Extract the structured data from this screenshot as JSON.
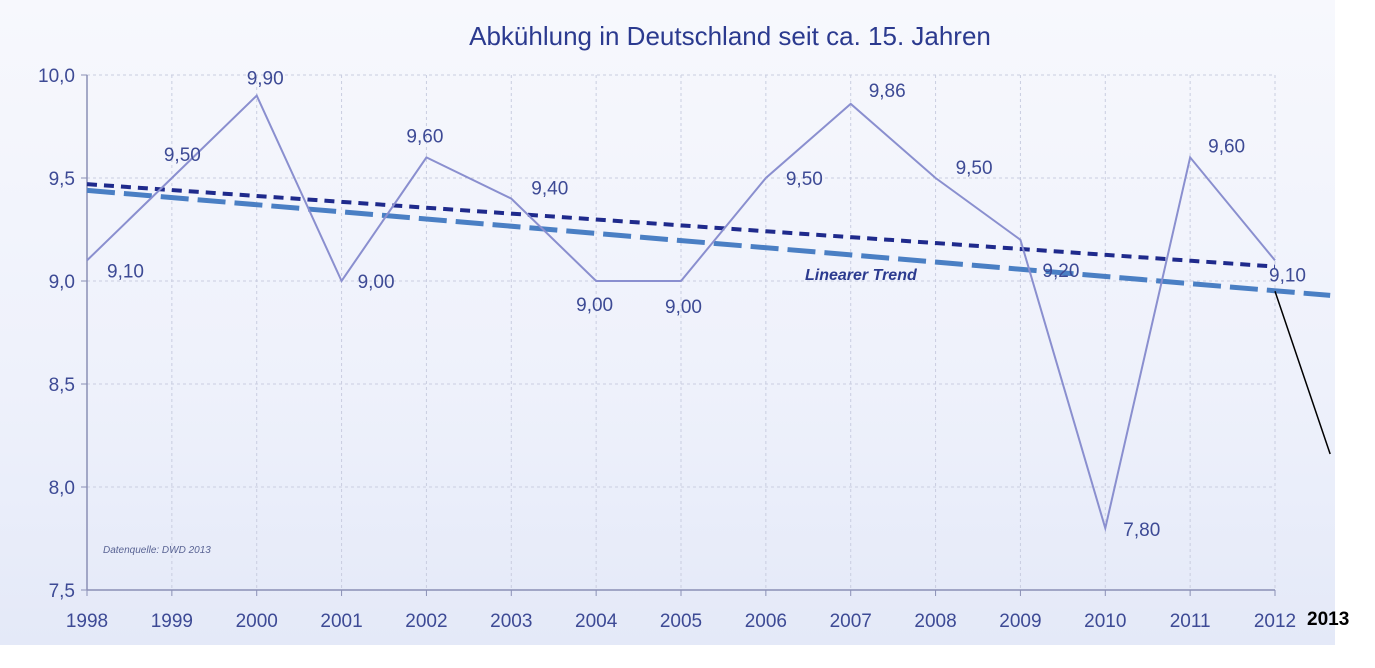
{
  "chart_data": {
    "type": "line",
    "title": "Abkühlung in Deutschland seit ca. 15. Jahren",
    "x": [
      "1998",
      "1999",
      "2000",
      "2001",
      "2002",
      "2003",
      "2004",
      "2005",
      "2006",
      "2007",
      "2008",
      "2009",
      "2010",
      "2011",
      "2012"
    ],
    "series": [
      {
        "values": [
          9.1,
          9.5,
          9.9,
          9.0,
          9.6,
          9.4,
          9.0,
          9.0,
          9.5,
          9.86,
          9.5,
          9.2,
          7.8,
          9.6,
          9.1
        ],
        "labels": [
          "9,10",
          "9,50",
          "9,90",
          "9,00",
          "9,60",
          "9,40",
          "9,00",
          "9,00",
          "9,50",
          "9,86",
          "9,50",
          "9,20",
          "7,80",
          "9,60",
          "9,10"
        ],
        "color": "#8a8fcf"
      }
    ],
    "trend_lines": [
      {
        "name": "Linearer Trend",
        "style": "short-dash",
        "color": "#1f2a8c",
        "start": 9.47,
        "end": 9.07
      },
      {
        "style": "long-dash",
        "color": "#4a7fc4",
        "start": 9.44,
        "end": 8.95,
        "extends_to": 2012.65,
        "end_value_extended": 8.93
      }
    ],
    "ylim": [
      7.5,
      10.0
    ],
    "yticks": [
      "7,5",
      "8,0",
      "8,5",
      "9,0",
      "9,5",
      "10,0"
    ],
    "ytick_values": [
      7.5,
      8.0,
      8.5,
      9.0,
      9.5,
      10.0
    ],
    "grid": true,
    "annotations": {
      "trend_label": "Linearer Trend",
      "source": "Datenquelle: DWD 2013",
      "added_year": "2013"
    },
    "added_drop_line": {
      "color": "#000000",
      "from_x": 2012,
      "from_value": 8.95,
      "to_x": 2012.65,
      "to_value": 8.16
    }
  }
}
